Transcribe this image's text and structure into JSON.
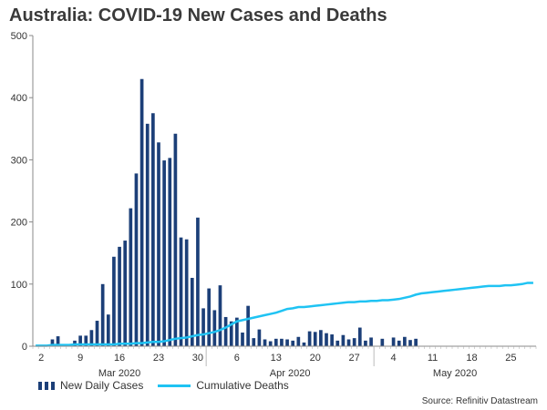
{
  "title": "Australia: COVID-19 New Cases and Deaths",
  "source": "Source: Refinitiv Datastream",
  "colors": {
    "bars": "#1c3f78",
    "line": "#1fc3f3",
    "axis": "#888888"
  },
  "chart_data": {
    "type": "bar",
    "ylim": [
      0,
      500
    ],
    "yticks": [
      0,
      100,
      200,
      300,
      400,
      500
    ],
    "x_tick_labels": [
      "2",
      "9",
      "16",
      "23",
      "30",
      "6",
      "13",
      "20",
      "27",
      "4",
      "11",
      "18",
      "25"
    ],
    "month_labels": [
      "Mar 2020",
      "Apr 2020",
      "May 2020"
    ],
    "dates": [
      "2020-03-01",
      "2020-03-02",
      "2020-03-03",
      "2020-03-04",
      "2020-03-05",
      "2020-03-06",
      "2020-03-07",
      "2020-03-08",
      "2020-03-09",
      "2020-03-10",
      "2020-03-11",
      "2020-03-12",
      "2020-03-13",
      "2020-03-14",
      "2020-03-15",
      "2020-03-16",
      "2020-03-17",
      "2020-03-18",
      "2020-03-19",
      "2020-03-20",
      "2020-03-21",
      "2020-03-22",
      "2020-03-23",
      "2020-03-24",
      "2020-03-25",
      "2020-03-26",
      "2020-03-27",
      "2020-03-28",
      "2020-03-29",
      "2020-03-30",
      "2020-03-31",
      "2020-04-01",
      "2020-04-02",
      "2020-04-03",
      "2020-04-04",
      "2020-04-05",
      "2020-04-06",
      "2020-04-07",
      "2020-04-08",
      "2020-04-09",
      "2020-04-10",
      "2020-04-11",
      "2020-04-12",
      "2020-04-13",
      "2020-04-14",
      "2020-04-15",
      "2020-04-16",
      "2020-04-17",
      "2020-04-18",
      "2020-04-19",
      "2020-04-20",
      "2020-04-21",
      "2020-04-22",
      "2020-04-23",
      "2020-04-24",
      "2020-04-25",
      "2020-04-26",
      "2020-04-27",
      "2020-04-28",
      "2020-04-29",
      "2020-04-30",
      "2020-05-01",
      "2020-05-02",
      "2020-05-03",
      "2020-05-04",
      "2020-05-05",
      "2020-05-06",
      "2020-05-07",
      "2020-05-08",
      "2020-05-09",
      "2020-05-10",
      "2020-05-11",
      "2020-05-12",
      "2020-05-13",
      "2020-05-14",
      "2020-05-15",
      "2020-05-16",
      "2020-05-17",
      "2020-05-18",
      "2020-05-19",
      "2020-05-20",
      "2020-05-21",
      "2020-05-22",
      "2020-05-23",
      "2020-05-24",
      "2020-05-25",
      "2020-05-26",
      "2020-05-27",
      "2020-05-28",
      "2020-05-29"
    ],
    "series": [
      {
        "name": "New Daily Cases",
        "type": "bar",
        "values": [
          0,
          0,
          0,
          11,
          16,
          0,
          0,
          9,
          17,
          17,
          26,
          41,
          100,
          51,
          144,
          160,
          170,
          222,
          278,
          430,
          358,
          375,
          328,
          299,
          303,
          342,
          175,
          172,
          110,
          207,
          61,
          93,
          58,
          98,
          47,
          40,
          46,
          22,
          65,
          13,
          27,
          11,
          8,
          12,
          12,
          11,
          9,
          15,
          6,
          24,
          23,
          26,
          21,
          19,
          9,
          18,
          11,
          13,
          30,
          9,
          14,
          0,
          12,
          0,
          14,
          9,
          15,
          10,
          12,
          0,
          0,
          0,
          0,
          0,
          0,
          0,
          0,
          0,
          0,
          0,
          0,
          0,
          0,
          0,
          0,
          0,
          0,
          0,
          0,
          0
        ]
      },
      {
        "name": "Cumulative Deaths",
        "type": "line",
        "values": [
          1,
          1,
          1,
          2,
          2,
          2,
          2,
          3,
          3,
          3,
          3,
          3,
          3,
          3,
          3,
          4,
          4,
          4,
          5,
          5,
          6,
          7,
          7,
          8,
          10,
          12,
          13,
          14,
          16,
          18,
          19,
          21,
          23,
          26,
          30,
          35,
          40,
          42,
          44,
          46,
          48,
          50,
          52,
          54,
          57,
          60,
          61,
          63,
          63,
          64,
          65,
          66,
          67,
          68,
          69,
          70,
          71,
          71,
          72,
          72,
          73,
          73,
          74,
          74,
          75,
          76,
          78,
          80,
          83,
          85,
          86,
          87,
          88,
          89,
          90,
          91,
          92,
          93,
          94,
          95,
          96,
          97,
          97,
          97,
          98,
          98,
          99,
          100,
          102,
          102
        ]
      }
    ]
  }
}
